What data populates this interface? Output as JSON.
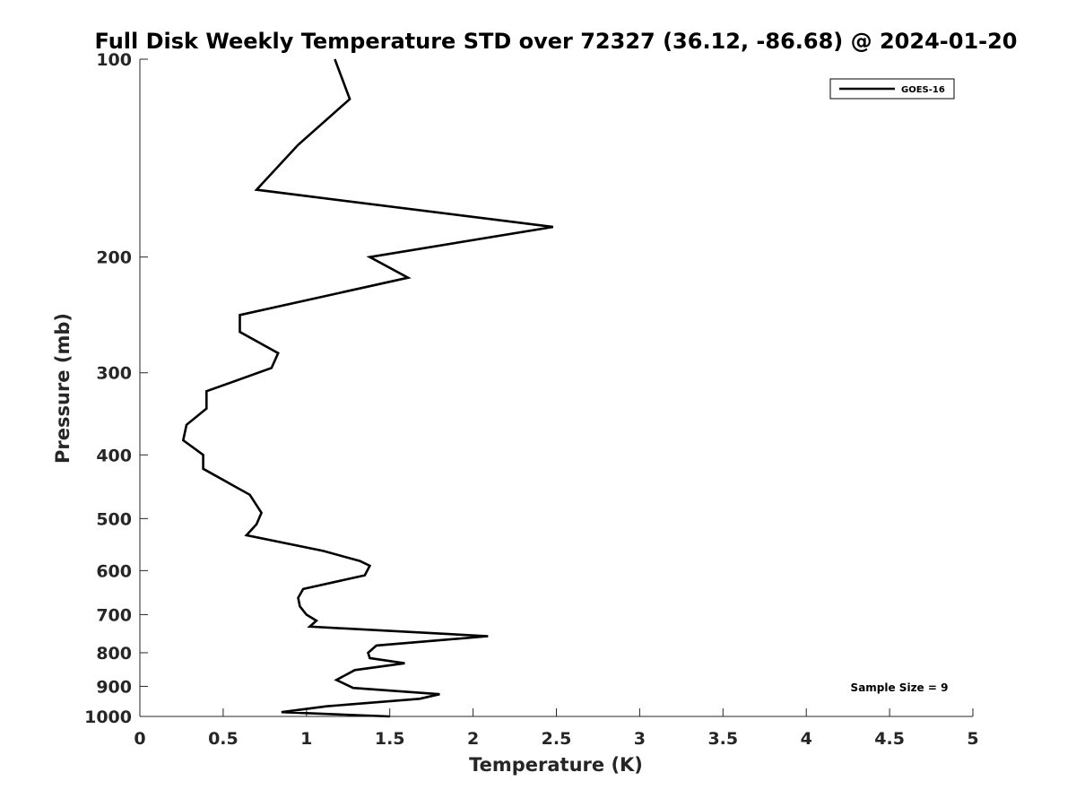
{
  "chart_data": {
    "type": "line",
    "title": "Full Disk Weekly Temperature STD over 72327 (36.12, -86.68) @ 2024-01-20",
    "xlabel": "Temperature (K)",
    "ylabel": "Pressure (mb)",
    "xlim": [
      0,
      5
    ],
    "ylim": [
      1000,
      100
    ],
    "y_scale": "log",
    "y_reversed": true,
    "grid": false,
    "x_ticks": [
      "0",
      "0.5",
      "1",
      "1.5",
      "2",
      "2.5",
      "3",
      "3.5",
      "4",
      "4.5",
      "5"
    ],
    "y_ticks": [
      "100",
      "200",
      "300",
      "400",
      "500",
      "600",
      "700",
      "800",
      "900",
      "1000"
    ],
    "legend_position": "top-right",
    "series": [
      {
        "name": "GOES-16",
        "color": "#000000",
        "x": [
          1.17,
          1.26,
          0.95,
          0.7,
          2.48,
          1.38,
          1.61,
          0.6,
          0.6,
          0.83,
          0.79,
          0.4,
          0.4,
          0.28,
          0.26,
          0.38,
          0.38,
          0.66,
          0.73,
          0.7,
          0.64,
          1.1,
          1.32,
          1.38,
          1.35,
          0.98,
          0.95,
          0.96,
          1.0,
          1.06,
          1.02,
          2.09,
          1.42,
          1.37,
          1.38,
          1.59,
          1.29,
          1.18,
          1.28,
          1.8,
          1.68,
          1.12,
          0.85,
          1.5
        ],
        "y": [
          100,
          115,
          135,
          158,
          180,
          200,
          215,
          245,
          260,
          280,
          295,
          320,
          340,
          360,
          380,
          400,
          420,
          460,
          490,
          510,
          530,
          560,
          580,
          590,
          610,
          640,
          660,
          680,
          700,
          715,
          730,
          755,
          780,
          800,
          815,
          830,
          850,
          880,
          905,
          925,
          940,
          965,
          985,
          1000
        ]
      }
    ],
    "annotation": "Sample Size = 9"
  }
}
